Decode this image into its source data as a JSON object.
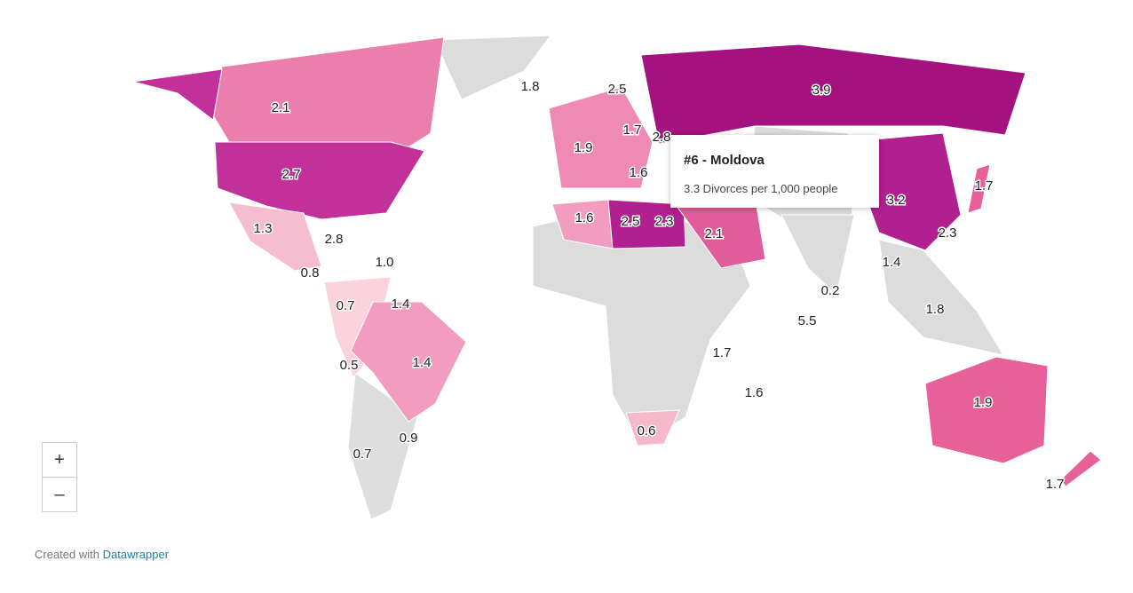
{
  "map": {
    "labels": [
      "3.9",
      "2.1",
      "2.7",
      "1.8",
      "2.5",
      "1.7",
      "2.8",
      "1.9",
      "1.6",
      "1.6",
      "2.5",
      "2.3",
      "2.1",
      "3.2",
      "1.7",
      "2.3",
      "1.3",
      "2.8",
      "1.0",
      "0.8",
      "0.7",
      "1.4",
      "1.4",
      "0.2",
      "5.5",
      "1.8",
      "0.5",
      "1.4",
      "1.7",
      "1.6",
      "1.9",
      "0.6",
      "0.9",
      "0.7",
      "1.7"
    ],
    "tooltip": {
      "title": "#6 - Moldova",
      "text": "3.3 Divorces per 1,000 people"
    },
    "zoom": {
      "in": "+",
      "out": "–"
    },
    "credit": {
      "prefix": "Created with",
      "link": "Datawrapper"
    }
  }
}
